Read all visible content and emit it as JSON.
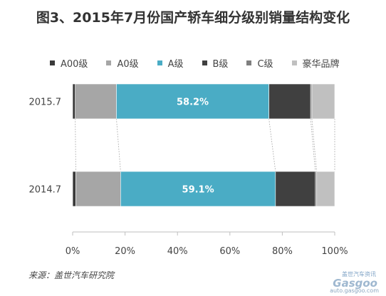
{
  "chart_data": {
    "type": "bar",
    "orientation": "horizontal",
    "stacked": "percent",
    "title": "图3、2015年7月份国产轿车细分级别销量结构变化",
    "categories": [
      "2015.7",
      "2014.7"
    ],
    "series": [
      {
        "name": "A00级",
        "color": "#3a3a3a",
        "values": [
          1.0,
          1.2
        ]
      },
      {
        "name": "A0级",
        "color": "#a6a6a6",
        "values": [
          15.7,
          17.1
        ]
      },
      {
        "name": "A级",
        "color": "#4aacc5",
        "values": [
          58.2,
          59.1
        ]
      },
      {
        "name": "B级",
        "color": "#404040",
        "values": [
          15.9,
          15.2
        ]
      },
      {
        "name": "C级",
        "color": "#7f7f7f",
        "values": [
          0.5,
          0.5
        ]
      },
      {
        "name": "豪华品牌",
        "color": "#c0c0c0",
        "values": [
          8.7,
          6.9
        ]
      }
    ],
    "data_labels": [
      {
        "category": "2015.7",
        "series": "A级",
        "text": "58.2%"
      },
      {
        "category": "2014.7",
        "series": "A级",
        "text": "59.1%"
      }
    ],
    "xlim": [
      0,
      100
    ],
    "x_ticks": [
      "0%",
      "20%",
      "40%",
      "60%",
      "80%",
      "100%"
    ],
    "grid": false,
    "legend_position": "top",
    "series_connectors": "dotted"
  },
  "source": "来源：盖世汽车研究院",
  "watermark": {
    "cn": "盖世汽车资讯",
    "logo": "Gasgoo",
    "url": "auto.gasgoo.com"
  }
}
